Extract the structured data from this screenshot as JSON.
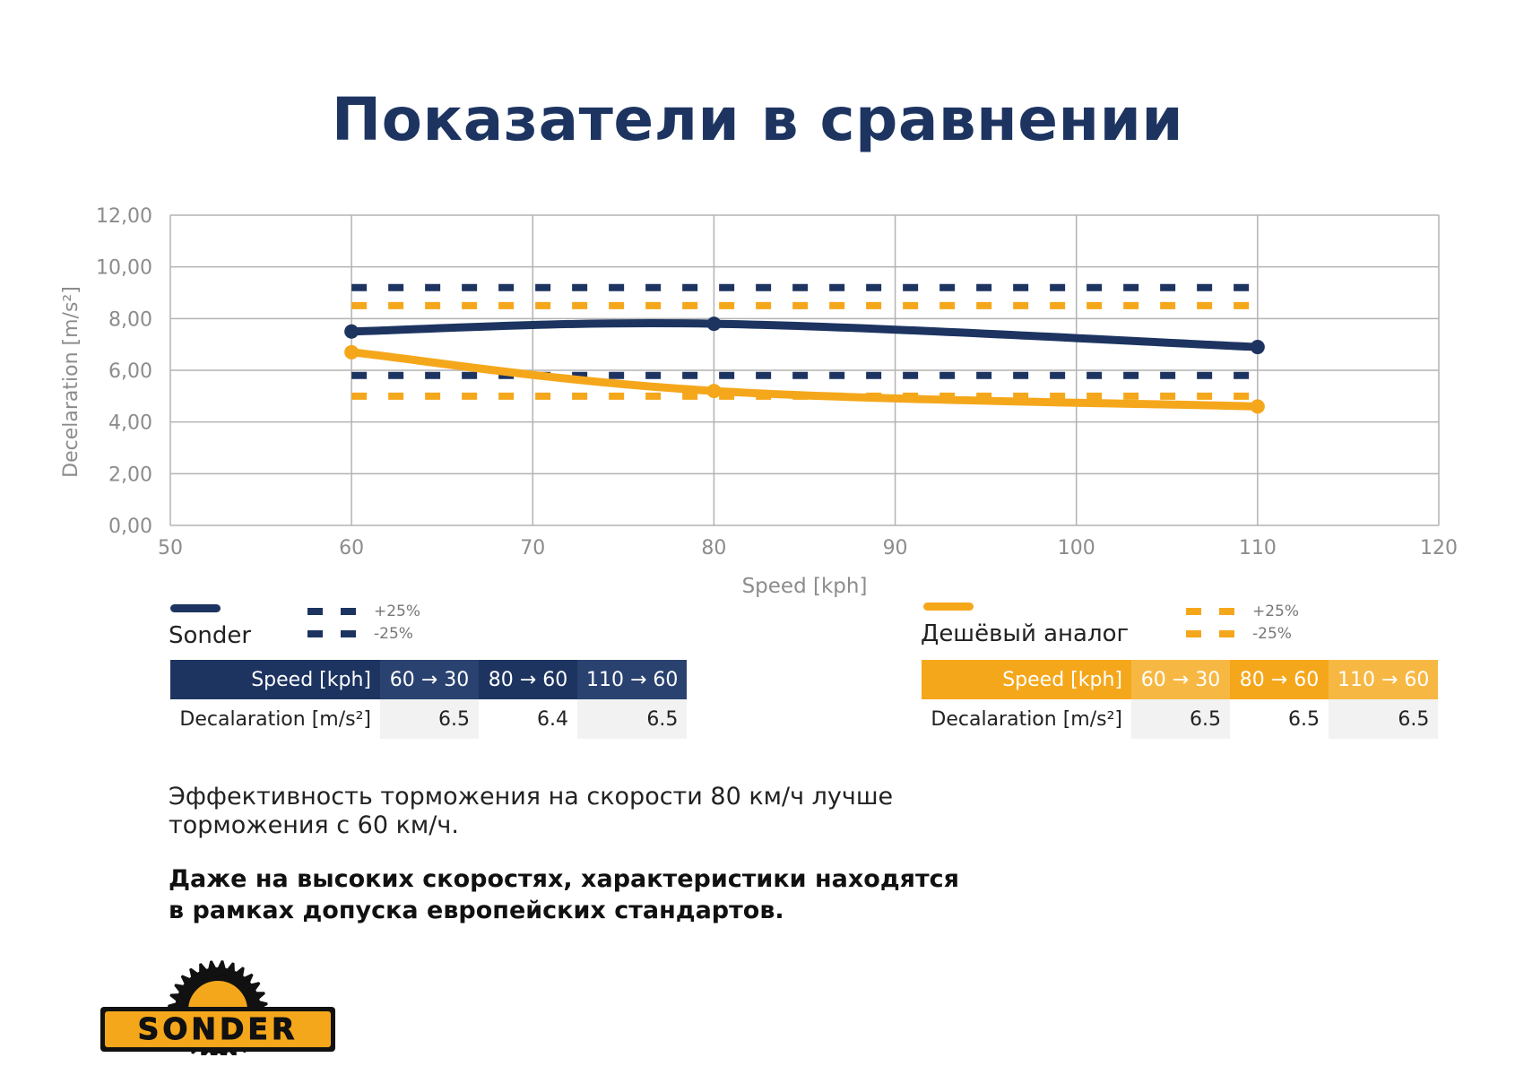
{
  "title": "Показатели в сравнении",
  "chart_data": {
    "type": "line",
    "xlabel": "Speed [kph]",
    "ylabel": "Decelaration [m/s²]",
    "xlim": [
      50,
      120
    ],
    "ylim": [
      0,
      12
    ],
    "x_ticks": [
      50,
      60,
      70,
      80,
      90,
      100,
      110,
      120
    ],
    "y_ticks": [
      "0,00",
      "2,00",
      "4,00",
      "6,00",
      "8,00",
      "10,00",
      "12,00"
    ],
    "y_tick_values": [
      0,
      2,
      4,
      6,
      8,
      10,
      12
    ],
    "grid": true,
    "series": [
      {
        "name": "Sonder",
        "color": "#1d3461",
        "x": [
          60,
          80,
          110
        ],
        "values": [
          7.5,
          7.8,
          6.9
        ],
        "upper_band": 9.2,
        "lower_band": 5.8,
        "band_from": 60,
        "band_to": 110
      },
      {
        "name": "Дешёвый аналог",
        "color": "#f5a71b",
        "x": [
          60,
          80,
          110
        ],
        "values": [
          6.7,
          5.2,
          4.6
        ],
        "upper_band": 8.5,
        "lower_band": 5.0,
        "band_from": 60,
        "band_to": 110
      }
    ]
  },
  "legend": {
    "plus": "+25%",
    "minus": "-25%"
  },
  "tables": {
    "sonder": {
      "name": "Sonder",
      "header_label": "Speed [kph]",
      "header": [
        "60 → 30",
        "80 → 60",
        "110 → 60"
      ],
      "row_label": "Decalaration [m/s²]",
      "values": [
        "6.5",
        "6.4",
        "6.5"
      ]
    },
    "analog": {
      "name": "Дешёвый аналог",
      "header_label": "Speed [kph]",
      "header": [
        "60 → 30",
        "80 → 60",
        "110 → 60"
      ],
      "row_label": "Decalaration [m/s²]",
      "values": [
        "6.5",
        "6.5",
        "6.5"
      ]
    }
  },
  "notes": {
    "line1": "Эффективность торможения на скорости 80 км/ч лучше торможения с 60 км/ч.",
    "line2": "Даже на высоких скоростях, характеристики находятся в рамках допуска европейских стандартов."
  },
  "logo": {
    "text": "SONDER"
  },
  "colors": {
    "navy": "#1d3461",
    "orange": "#f5a71b",
    "grid": "#b3b3b3",
    "axis_text": "#8c8c8c"
  }
}
